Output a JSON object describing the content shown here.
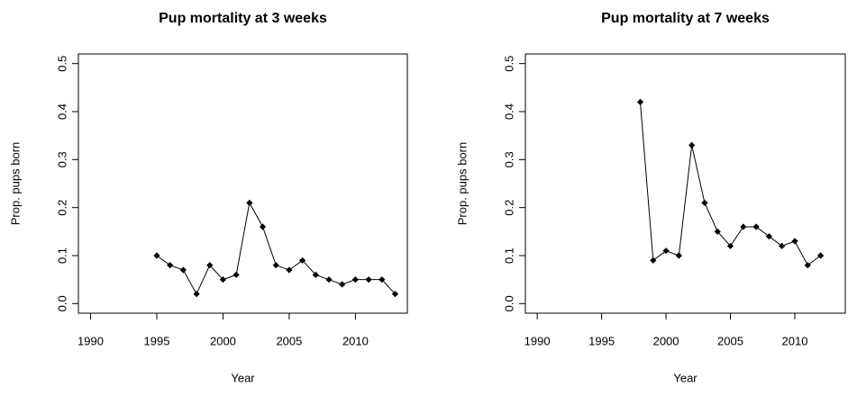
{
  "chart_data": [
    {
      "type": "line",
      "title": "Pup mortality at 3 weeks",
      "x_label": "Year",
      "y_label": "Prop. pups born",
      "color": "#000000",
      "x": [
        1995,
        1996,
        1997,
        1998,
        1999,
        2000,
        2001,
        2002,
        2003,
        2004,
        2005,
        2006,
        2007,
        2008,
        2009,
        2010,
        2011,
        2012,
        2013
      ],
      "values": [
        0.1,
        0.08,
        0.07,
        0.02,
        0.08,
        0.05,
        0.06,
        0.21,
        0.16,
        0.08,
        0.07,
        0.09,
        0.06,
        0.05,
        0.04,
        0.05,
        0.05,
        0.05,
        0.02
      ],
      "xlim": [
        1989.08,
        2013.92
      ],
      "ylim": [
        -0.02,
        0.52
      ],
      "xticks": [
        1990,
        1995,
        2000,
        2005,
        2010
      ],
      "yticks": [
        {
          "value": 0,
          "label": "0.0"
        },
        0.1,
        0.2,
        0.3,
        0.4,
        0.5
      ]
    },
    {
      "type": "line",
      "title": "Pup mortality at 7 weeks",
      "x_label": "Year",
      "y_label": "Prop. pups born",
      "color": "#000000",
      "x": [
        1998,
        1999,
        2000,
        2001,
        2002,
        2003,
        2004,
        2005,
        2006,
        2007,
        2008,
        2009,
        2010,
        2011,
        2012
      ],
      "values": [
        0.42,
        0.09,
        0.11,
        0.1,
        0.33,
        0.21,
        0.15,
        0.12,
        0.16,
        0.16,
        0.14,
        0.12,
        0.13,
        0.08,
        0.1
      ],
      "xlim": [
        1989.08,
        2013.92
      ],
      "ylim": [
        -0.02,
        0.52
      ],
      "xticks": [
        1990,
        1995,
        2000,
        2005,
        2010
      ],
      "yticks": [
        {
          "value": 0,
          "label": "0.0"
        },
        0.1,
        0.2,
        0.3,
        0.4,
        0.5
      ]
    }
  ]
}
